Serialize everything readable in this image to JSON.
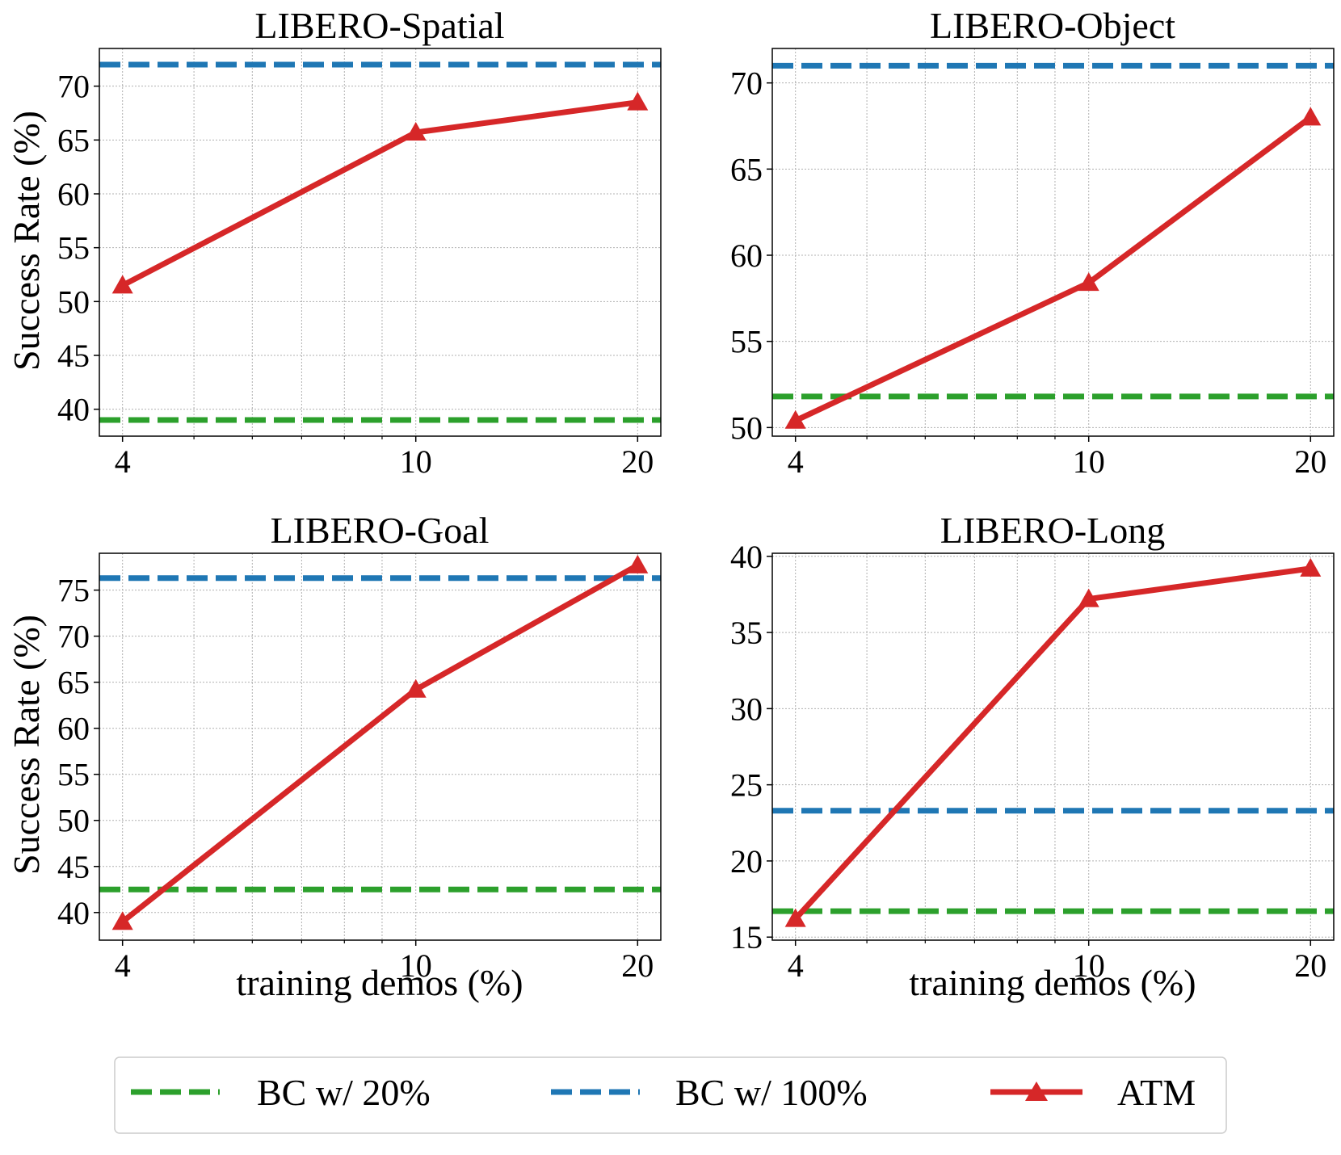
{
  "chart_data": [
    {
      "type": "line",
      "title": "LIBERO-Spatial",
      "xlabel": "",
      "ylabel": "Success Rate (%)",
      "x": [
        4,
        10,
        20
      ],
      "xscale": "log",
      "xticks": [
        "4",
        "10",
        "20"
      ],
      "ylim": [
        37.5,
        73.5
      ],
      "yticks": [
        "40",
        "45",
        "50",
        "55",
        "60",
        "65",
        "70"
      ],
      "series": [
        {
          "name": "ATM",
          "values": [
            51.5,
            65.7,
            68.5
          ]
        }
      ],
      "hlines": {
        "BC w/ 20%": 39.0,
        "BC w/ 100%": 72.0
      }
    },
    {
      "type": "line",
      "title": "LIBERO-Object",
      "xlabel": "",
      "ylabel": "",
      "x": [
        4,
        10,
        20
      ],
      "xscale": "log",
      "xticks": [
        "4",
        "10",
        "20"
      ],
      "ylim": [
        49.5,
        72.0
      ],
      "yticks": [
        "50",
        "55",
        "60",
        "65",
        "70"
      ],
      "series": [
        {
          "name": "ATM",
          "values": [
            50.4,
            58.4,
            68.0
          ]
        }
      ],
      "hlines": {
        "BC w/ 20%": 51.8,
        "BC w/ 100%": 71.0
      }
    },
    {
      "type": "line",
      "title": "LIBERO-Goal",
      "xlabel": "training demos (%)",
      "ylabel": "Success Rate (%)",
      "x": [
        4,
        10,
        20
      ],
      "xscale": "log",
      "xticks": [
        "4",
        "10",
        "20"
      ],
      "ylim": [
        37.0,
        79.0
      ],
      "yticks": [
        "40",
        "45",
        "50",
        "55",
        "60",
        "65",
        "70",
        "75"
      ],
      "series": [
        {
          "name": "ATM",
          "values": [
            39.0,
            64.2,
            77.7
          ]
        }
      ],
      "hlines": {
        "BC w/ 20%": 42.5,
        "BC w/ 100%": 76.3
      }
    },
    {
      "type": "line",
      "title": "LIBERO-Long",
      "xlabel": "training demos (%)",
      "ylabel": "",
      "x": [
        4,
        10,
        20
      ],
      "xscale": "log",
      "xticks": [
        "4",
        "10",
        "20"
      ],
      "ylim": [
        14.8,
        40.2
      ],
      "yticks": [
        "15",
        "20",
        "25",
        "30",
        "35",
        "40"
      ],
      "series": [
        {
          "name": "ATM",
          "values": [
            16.2,
            37.2,
            39.2
          ]
        }
      ],
      "hlines": {
        "BC w/ 20%": 16.7,
        "BC w/ 100%": 23.3
      }
    }
  ],
  "legend": {
    "position": "bottom-center",
    "items": [
      {
        "label": "BC w/ 20%",
        "color": "#2ca02c",
        "style": "dashed"
      },
      {
        "label": "BC w/ 100%",
        "color": "#1f77b4",
        "style": "dashed"
      },
      {
        "label": "ATM",
        "color": "#d62728",
        "style": "solid-triangle"
      }
    ]
  },
  "colors": {
    "bc20": "#2ca02c",
    "bc100": "#1f77b4",
    "atm": "#d62728"
  }
}
